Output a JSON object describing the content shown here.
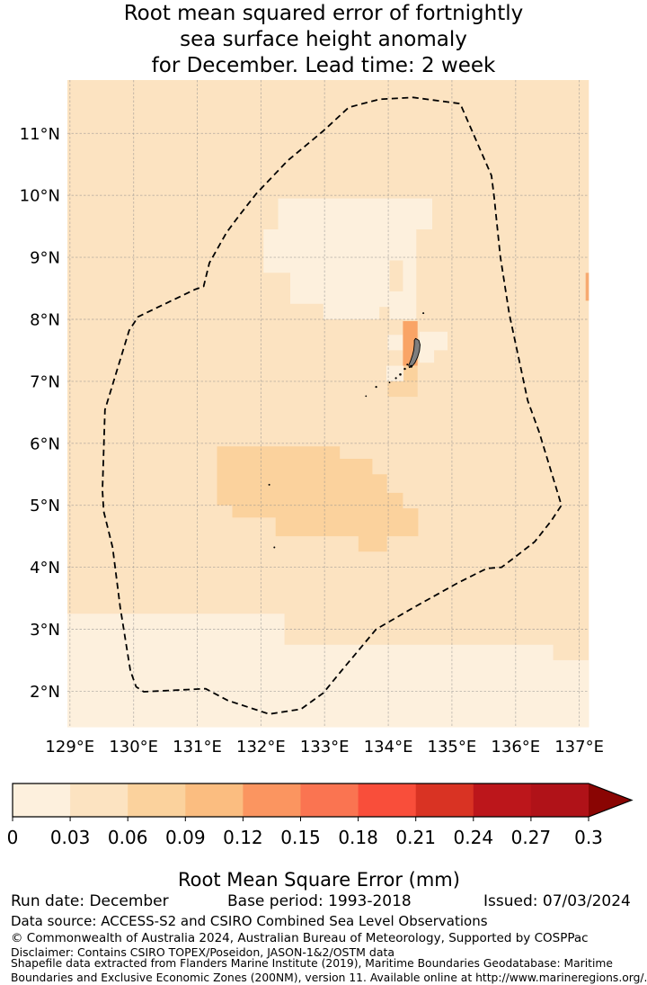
{
  "title": {
    "line1": "Root mean squared error of fortnightly",
    "line2": "sea surface height anomaly",
    "line3": "for December. Lead time: 2 week"
  },
  "footer": {
    "run_date": "Run date: December",
    "base_period": "Base period: 1993-2018",
    "issued": "Issued: 07/03/2024",
    "data_source": "Data source: ACCESS-S2 and CSIRO Combined Sea Level Observations",
    "copyright": "© Commonwealth of Australia 2024, Australian Bureau of Meteorology, Supported by COSPPac",
    "disclaimer": "Disclaimer: Contains CSIRO TOPEX/Poseidon, JASON-1&2/OSTM data",
    "shapefile1": "Shapefile data extracted from Flanders Marine Institute (2019), Maritime Boundaries Geodatabase: Maritime",
    "shapefile2": "Boundaries and Exclusive Economic Zones (200NM), version 11. Available online at http://www.marineregions.org/."
  },
  "chart_data": {
    "type": "heatmap",
    "title": "Root mean squared error of fortnightly sea surface height anomaly for December. Lead time: 2 week",
    "units": "mm",
    "extent": {
      "lon": [
        128.96,
        137.15
      ],
      "lat": [
        1.42,
        11.86
      ]
    },
    "xticks": [
      {
        "value": 129,
        "label": "129°E"
      },
      {
        "value": 130,
        "label": "130°E"
      },
      {
        "value": 131,
        "label": "131°E"
      },
      {
        "value": 132,
        "label": "132°E"
      },
      {
        "value": 133,
        "label": "133°E"
      },
      {
        "value": 134,
        "label": "134°E"
      },
      {
        "value": 135,
        "label": "135°E"
      },
      {
        "value": 136,
        "label": "136°E"
      },
      {
        "value": 137,
        "label": "137°E"
      }
    ],
    "yticks": [
      {
        "value": 2,
        "label": "2°N"
      },
      {
        "value": 3,
        "label": "3°N"
      },
      {
        "value": 4,
        "label": "4°N"
      },
      {
        "value": 5,
        "label": "5°N"
      },
      {
        "value": 6,
        "label": "6°N"
      },
      {
        "value": 7,
        "label": "7°N"
      },
      {
        "value": 8,
        "label": "8°N"
      },
      {
        "value": 9,
        "label": "9°N"
      },
      {
        "value": 10,
        "label": "10°N"
      },
      {
        "value": 11,
        "label": "11°N"
      }
    ],
    "background": {
      "value_range": "0.03-0.06",
      "color": "#fce3c1"
    },
    "grid": {
      "color": "#8c8c8c",
      "dash": "2.5 2",
      "opacity": 0.55
    },
    "eez_boundary": {
      "name": "Palau EEZ (200NM) boundary",
      "points": [
        [
          129.95,
          2.33
        ],
        [
          129.79,
          3.35
        ],
        [
          129.67,
          4.32
        ],
        [
          129.53,
          4.9
        ],
        [
          129.51,
          5.24
        ],
        [
          129.55,
          6.54
        ],
        [
          129.93,
          7.82
        ],
        [
          130.07,
          8.04
        ],
        [
          130.96,
          8.48
        ],
        [
          131.1,
          8.53
        ],
        [
          131.19,
          8.91
        ],
        [
          131.46,
          9.4
        ],
        [
          131.67,
          9.69
        ],
        [
          131.93,
          10.03
        ],
        [
          132.42,
          10.56
        ],
        [
          132.98,
          11.04
        ],
        [
          133.38,
          11.42
        ],
        [
          133.86,
          11.55
        ],
        [
          134.39,
          11.58
        ],
        [
          135.13,
          11.48
        ],
        [
          135.62,
          10.32
        ],
        [
          135.66,
          10.0
        ],
        [
          135.76,
          9.01
        ],
        [
          135.9,
          8.09
        ],
        [
          136.13,
          6.98
        ],
        [
          136.19,
          6.69
        ],
        [
          136.37,
          6.18
        ],
        [
          136.72,
          5.0
        ],
        [
          136.56,
          4.75
        ],
        [
          136.3,
          4.41
        ],
        [
          136.0,
          4.17
        ],
        [
          135.78,
          4.0
        ],
        [
          135.55,
          3.98
        ],
        [
          135.39,
          3.9
        ],
        [
          135.08,
          3.74
        ],
        [
          134.4,
          3.35
        ],
        [
          133.81,
          3.0
        ],
        [
          133.25,
          2.31
        ],
        [
          132.98,
          1.97
        ],
        [
          132.63,
          1.71
        ],
        [
          132.13,
          1.63
        ],
        [
          131.48,
          1.85
        ],
        [
          131.13,
          2.04
        ],
        [
          130.16,
          1.99
        ],
        [
          130.04,
          2.07
        ]
      ]
    },
    "regions": [
      {
        "name": "south-low-rmse",
        "value_range": "0-0.03",
        "fill": "#fdf0dd",
        "points": [
          [
            128.96,
            3.25
          ],
          [
            132.37,
            3.25
          ],
          [
            132.37,
            2.75
          ],
          [
            136.59,
            2.75
          ],
          [
            136.59,
            2.5
          ],
          [
            137.15,
            2.5
          ],
          [
            137.15,
            1.42
          ],
          [
            128.96,
            1.42
          ]
        ]
      },
      {
        "name": "north-low-rmse",
        "value_range": "0-0.03",
        "fill": "#fdf0dd",
        "points": [
          [
            132.27,
            9.95
          ],
          [
            134.69,
            9.95
          ],
          [
            134.69,
            9.45
          ],
          [
            134.44,
            9.45
          ],
          [
            134.44,
            8.0
          ],
          [
            132.98,
            8.0
          ],
          [
            132.98,
            8.25
          ],
          [
            132.46,
            8.25
          ],
          [
            132.46,
            8.75
          ],
          [
            132.04,
            8.75
          ],
          [
            132.04,
            9.45
          ],
          [
            132.27,
            9.45
          ]
        ]
      },
      {
        "name": "north-notch-a",
        "value_range": "0.03-0.06",
        "fill": "#fce3c1",
        "points": [
          [
            134.02,
            8.95
          ],
          [
            134.23,
            8.95
          ],
          [
            134.23,
            8.45
          ],
          [
            134.02,
            8.45
          ]
        ]
      },
      {
        "name": "north-notch-b",
        "value_range": "0.03-0.06",
        "fill": "#fce3c1",
        "points": [
          [
            133.86,
            8.2
          ],
          [
            134.02,
            8.2
          ],
          [
            134.02,
            8.0
          ],
          [
            133.86,
            8.0
          ]
        ]
      },
      {
        "name": "central-orange",
        "value_range": "0.06-0.09",
        "fill": "#fbd29d",
        "points": [
          [
            131.31,
            5.95
          ],
          [
            133.24,
            5.95
          ],
          [
            133.24,
            5.75
          ],
          [
            133.75,
            5.75
          ],
          [
            133.75,
            5.5
          ],
          [
            133.98,
            5.5
          ],
          [
            133.98,
            5.2
          ],
          [
            134.23,
            5.2
          ],
          [
            134.23,
            4.95
          ],
          [
            134.47,
            4.95
          ],
          [
            134.47,
            4.5
          ],
          [
            133.98,
            4.5
          ],
          [
            133.98,
            4.25
          ],
          [
            133.53,
            4.25
          ],
          [
            133.53,
            4.5
          ],
          [
            132.23,
            4.5
          ],
          [
            132.23,
            4.8
          ],
          [
            131.55,
            4.8
          ],
          [
            131.55,
            5.0
          ],
          [
            131.31,
            5.0
          ]
        ]
      },
      {
        "name": "island-west-pale",
        "value_range": "0-0.03",
        "fill": "#fdf0dd",
        "points": [
          [
            133.99,
            7.75
          ],
          [
            134.23,
            7.75
          ],
          [
            134.23,
            7.5
          ],
          [
            133.99,
            7.5
          ]
        ]
      },
      {
        "name": "island-east-pale",
        "value_range": "0-0.03",
        "fill": "#fdf0dd",
        "points": [
          [
            134.49,
            7.8
          ],
          [
            134.93,
            7.8
          ],
          [
            134.93,
            7.5
          ],
          [
            134.72,
            7.5
          ],
          [
            134.72,
            7.3
          ],
          [
            134.49,
            7.3
          ]
        ]
      },
      {
        "name": "island-south-pale",
        "value_range": "0-0.03",
        "fill": "#fdf0dd",
        "points": [
          [
            133.97,
            7.25
          ],
          [
            134.24,
            7.25
          ],
          [
            134.24,
            7.0
          ],
          [
            133.97,
            7.0
          ]
        ]
      },
      {
        "name": "island-orange-cell",
        "value_range": "0.09-0.15",
        "fill": "#f9a466",
        "points": [
          [
            134.23,
            7.97
          ],
          [
            134.46,
            7.97
          ],
          [
            134.46,
            7.25
          ],
          [
            134.23,
            7.25
          ]
        ]
      },
      {
        "name": "island-south-light-orange",
        "value_range": "0.06-0.09",
        "fill": "#fbd29d",
        "points": [
          [
            134.24,
            7.25
          ],
          [
            134.46,
            7.25
          ],
          [
            134.46,
            7.0
          ],
          [
            134.24,
            7.0
          ]
        ]
      },
      {
        "name": "island-far-south-light-orange",
        "value_range": "0.06-0.09",
        "fill": "#fbd6a6",
        "points": [
          [
            133.99,
            7.0
          ],
          [
            134.46,
            7.0
          ],
          [
            134.46,
            6.75
          ],
          [
            133.99,
            6.75
          ]
        ]
      },
      {
        "name": "east-edge-orange",
        "value_range": "0.09-0.12",
        "fill": "#f7aa70",
        "points": [
          [
            137.1,
            8.75
          ],
          [
            137.15,
            8.75
          ],
          [
            137.15,
            8.3
          ],
          [
            137.1,
            8.3
          ]
        ]
      }
    ],
    "island": {
      "name": "Palau main island",
      "fill": "#7e7e7e",
      "outline": "#000000",
      "polygon": [
        [
          134.43,
          7.69
        ],
        [
          134.48,
          7.66
        ],
        [
          134.5,
          7.59
        ],
        [
          134.49,
          7.49
        ],
        [
          134.46,
          7.39
        ],
        [
          134.42,
          7.3
        ],
        [
          134.38,
          7.25
        ],
        [
          134.33,
          7.22
        ],
        [
          134.32,
          7.26
        ],
        [
          134.35,
          7.33
        ],
        [
          134.38,
          7.42
        ],
        [
          134.4,
          7.5
        ],
        [
          134.41,
          7.6
        ],
        [
          134.41,
          7.66
        ]
      ]
    },
    "islets": [
      [
        134.55,
        8.1,
        1.0
      ],
      [
        134.36,
        7.24,
        1.5
      ],
      [
        134.3,
        7.27,
        1.0
      ],
      [
        134.26,
        7.2,
        1.2
      ],
      [
        134.19,
        7.11,
        1.3
      ],
      [
        134.12,
        7.05,
        1.1
      ],
      [
        134.02,
        6.98,
        0.9
      ],
      [
        133.81,
        6.91,
        1.1
      ],
      [
        133.65,
        6.76,
        0.9
      ],
      [
        132.13,
        5.33,
        1.0
      ],
      [
        132.21,
        4.32,
        1.0
      ]
    ],
    "colorbar": {
      "label": "Root Mean Square Error (mm)",
      "ticks": [
        "0",
        "0.03",
        "0.06",
        "0.09",
        "0.12",
        "0.15",
        "0.18",
        "0.21",
        "0.24",
        "0.27",
        "0.3"
      ],
      "colors": [
        "#fdf0dd",
        "#fce3c1",
        "#fbd29d",
        "#fbbd80",
        "#fb9560",
        "#fa7451",
        "#f94e3a",
        "#d93323",
        "#bc161b",
        "#b01218"
      ],
      "extend_color": "#8a0503",
      "outline": "#000000"
    }
  }
}
